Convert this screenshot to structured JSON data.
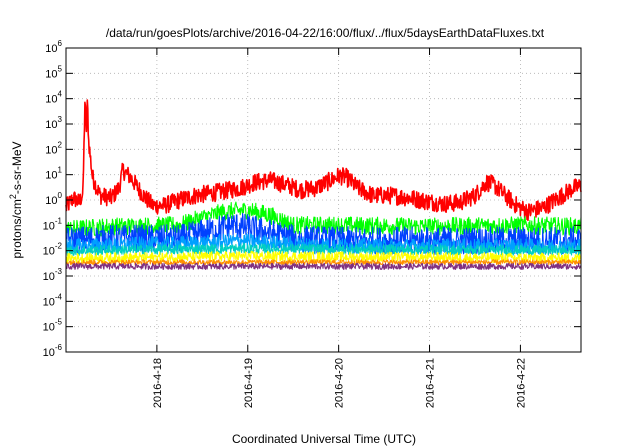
{
  "chart_data": {
    "type": "line",
    "title": "/data/run/goesPlots/archive/2016-04-22/16:00/flux/../flux/5daysEarthDataFluxes.txt",
    "xlabel": "Coordinated Universal Time (UTC)",
    "ylabel": {
      "base": "protons/cm",
      "sup": "2",
      "rest": "-s-sr-MeV"
    },
    "scale": {
      "y": "log"
    },
    "grid": true,
    "legend": "none",
    "xlim": [
      "2016-04-17 00:00",
      "2016-04-22 16:00"
    ],
    "ylim": [
      1e-06,
      1000000.0
    ],
    "y_ticks": [
      {
        "value": 1000000.0,
        "base": "10",
        "exp": "6"
      },
      {
        "value": 100000.0,
        "base": "10",
        "exp": "5"
      },
      {
        "value": 10000.0,
        "base": "10",
        "exp": "4"
      },
      {
        "value": 1000.0,
        "base": "10",
        "exp": "3"
      },
      {
        "value": 100.0,
        "base": "10",
        "exp": "2"
      },
      {
        "value": 10.0,
        "base": "10",
        "exp": "1"
      },
      {
        "value": 1.0,
        "base": "10",
        "exp": "0"
      },
      {
        "value": 0.1,
        "base": "10",
        "exp": "-1"
      },
      {
        "value": 0.01,
        "base": "10",
        "exp": "-2"
      },
      {
        "value": 0.001,
        "base": "10",
        "exp": "-3"
      },
      {
        "value": 0.0001,
        "base": "10",
        "exp": "-4"
      },
      {
        "value": 1e-05,
        "base": "10",
        "exp": "-5"
      },
      {
        "value": 1e-06,
        "base": "10",
        "exp": "-6"
      }
    ],
    "x_ticks": [
      {
        "value": "2016-04-18 00:00",
        "label": "2016-4-18"
      },
      {
        "value": "2016-04-19 00:00",
        "label": "2016-4-19"
      },
      {
        "value": "2016-04-20 00:00",
        "label": "2016-4-20"
      },
      {
        "value": "2016-04-21 00:00",
        "label": "2016-4-21"
      },
      {
        "value": "2016-04-22 00:00",
        "label": "2016-4-22"
      }
    ],
    "series": [
      {
        "color": "#ff0000",
        "noise": 0.35,
        "points": [
          [
            "2016-04-17 00:00",
            0.5
          ],
          [
            "2016-04-17 02:00",
            1.2
          ],
          [
            "2016-04-17 03:30",
            0.8
          ],
          [
            "2016-04-17 04:30",
            2.0
          ],
          [
            "2016-04-17 05:00",
            8000
          ],
          [
            "2016-04-17 05:20",
            500
          ],
          [
            "2016-04-17 05:40",
            7000
          ],
          [
            "2016-04-17 06:00",
            200
          ],
          [
            "2016-04-17 07:00",
            8
          ],
          [
            "2016-04-17 09:00",
            1.5
          ],
          [
            "2016-04-17 12:00",
            1.2
          ],
          [
            "2016-04-17 14:00",
            3
          ],
          [
            "2016-04-17 15:00",
            15
          ],
          [
            "2016-04-17 17:00",
            8
          ],
          [
            "2016-04-17 19:00",
            3
          ],
          [
            "2016-04-17 21:00",
            1.2
          ],
          [
            "2016-04-17 23:00",
            0.6
          ],
          [
            "2016-04-18 02:00",
            0.6
          ],
          [
            "2016-04-18 06:00",
            1.0
          ],
          [
            "2016-04-18 10:00",
            1.5
          ],
          [
            "2016-04-18 16:00",
            2
          ],
          [
            "2016-04-18 22:00",
            3
          ],
          [
            "2016-04-19 02:00",
            5
          ],
          [
            "2016-04-19 06:00",
            6
          ],
          [
            "2016-04-19 10:00",
            4
          ],
          [
            "2016-04-19 14:00",
            2.5
          ],
          [
            "2016-04-19 18:00",
            3
          ],
          [
            "2016-04-19 22:00",
            6
          ],
          [
            "2016-04-20 00:00",
            9
          ],
          [
            "2016-04-20 02:00",
            8
          ],
          [
            "2016-04-20 05:00",
            3
          ],
          [
            "2016-04-20 09:00",
            1.5
          ],
          [
            "2016-04-20 14:00",
            1.5
          ],
          [
            "2016-04-20 19:00",
            1.2
          ],
          [
            "2016-04-20 23:00",
            0.9
          ],
          [
            "2016-04-21 04:00",
            0.7
          ],
          [
            "2016-04-21 08:00",
            0.8
          ],
          [
            "2016-04-21 12:00",
            1.5
          ],
          [
            "2016-04-21 15:00",
            5
          ],
          [
            "2016-04-21 17:00",
            4
          ],
          [
            "2016-04-21 20:00",
            1.5
          ],
          [
            "2016-04-21 23:00",
            0.6
          ],
          [
            "2016-04-22 02:00",
            0.35
          ],
          [
            "2016-04-22 06:00",
            0.5
          ],
          [
            "2016-04-22 10:00",
            1.2
          ],
          [
            "2016-04-22 14:00",
            3
          ],
          [
            "2016-04-22 16:00",
            3.5
          ]
        ]
      },
      {
        "color": "#00ff00",
        "noise": 0.35,
        "points": [
          [
            "2016-04-17 00:00",
            0.07
          ],
          [
            "2016-04-17 12:00",
            0.09
          ],
          [
            "2016-04-18 06:00",
            0.1
          ],
          [
            "2016-04-18 12:00",
            0.2
          ],
          [
            "2016-04-18 18:00",
            0.35
          ],
          [
            "2016-04-19 00:00",
            0.4
          ],
          [
            "2016-04-19 06:00",
            0.25
          ],
          [
            "2016-04-19 12:00",
            0.1
          ],
          [
            "2016-04-20 00:00",
            0.1
          ],
          [
            "2016-04-21 00:00",
            0.09
          ],
          [
            "2016-04-22 00:00",
            0.1
          ],
          [
            "2016-04-22 16:00",
            0.09
          ]
        ]
      },
      {
        "color": "#0040ff",
        "noise": 0.55,
        "points": [
          [
            "2016-04-17 00:00",
            0.025
          ],
          [
            "2016-04-17 12:00",
            0.03
          ],
          [
            "2016-04-18 06:00",
            0.03
          ],
          [
            "2016-04-18 14:00",
            0.06
          ],
          [
            "2016-04-18 20:00",
            0.1
          ],
          [
            "2016-04-19 00:00",
            0.08
          ],
          [
            "2016-04-19 06:00",
            0.05
          ],
          [
            "2016-04-19 12:00",
            0.03
          ],
          [
            "2016-04-20 00:00",
            0.025
          ],
          [
            "2016-04-21 00:00",
            0.025
          ],
          [
            "2016-04-22 00:00",
            0.025
          ],
          [
            "2016-04-22 16:00",
            0.025
          ]
        ]
      },
      {
        "color": "#00a0ff",
        "noise": 0.3,
        "points": [
          [
            "2016-04-17 00:00",
            0.015
          ],
          [
            "2016-04-18 12:00",
            0.02
          ],
          [
            "2016-04-18 22:00",
            0.025
          ],
          [
            "2016-04-19 12:00",
            0.018
          ],
          [
            "2016-04-20 12:00",
            0.015
          ],
          [
            "2016-04-22 16:00",
            0.015
          ]
        ]
      },
      {
        "color": "#00d0c0",
        "noise": 0.2,
        "points": [
          [
            "2016-04-17 00:00",
            0.01
          ],
          [
            "2016-04-19 00:00",
            0.012
          ],
          [
            "2016-04-22 16:00",
            0.01
          ]
        ]
      },
      {
        "color": "#ffff00",
        "noise": 0.2,
        "points": [
          [
            "2016-04-17 00:00",
            0.005
          ],
          [
            "2016-04-19 00:00",
            0.006
          ],
          [
            "2016-04-22 16:00",
            0.005
          ]
        ]
      },
      {
        "color": "#ff9000",
        "noise": 0.1,
        "points": [
          [
            "2016-04-17 00:00",
            0.0035
          ],
          [
            "2016-04-22 16:00",
            0.0035
          ]
        ]
      },
      {
        "color": "#803080",
        "noise": 0.12,
        "points": [
          [
            "2016-04-17 00:00",
            0.0024
          ],
          [
            "2016-04-22 16:00",
            0.0024
          ]
        ]
      }
    ]
  }
}
